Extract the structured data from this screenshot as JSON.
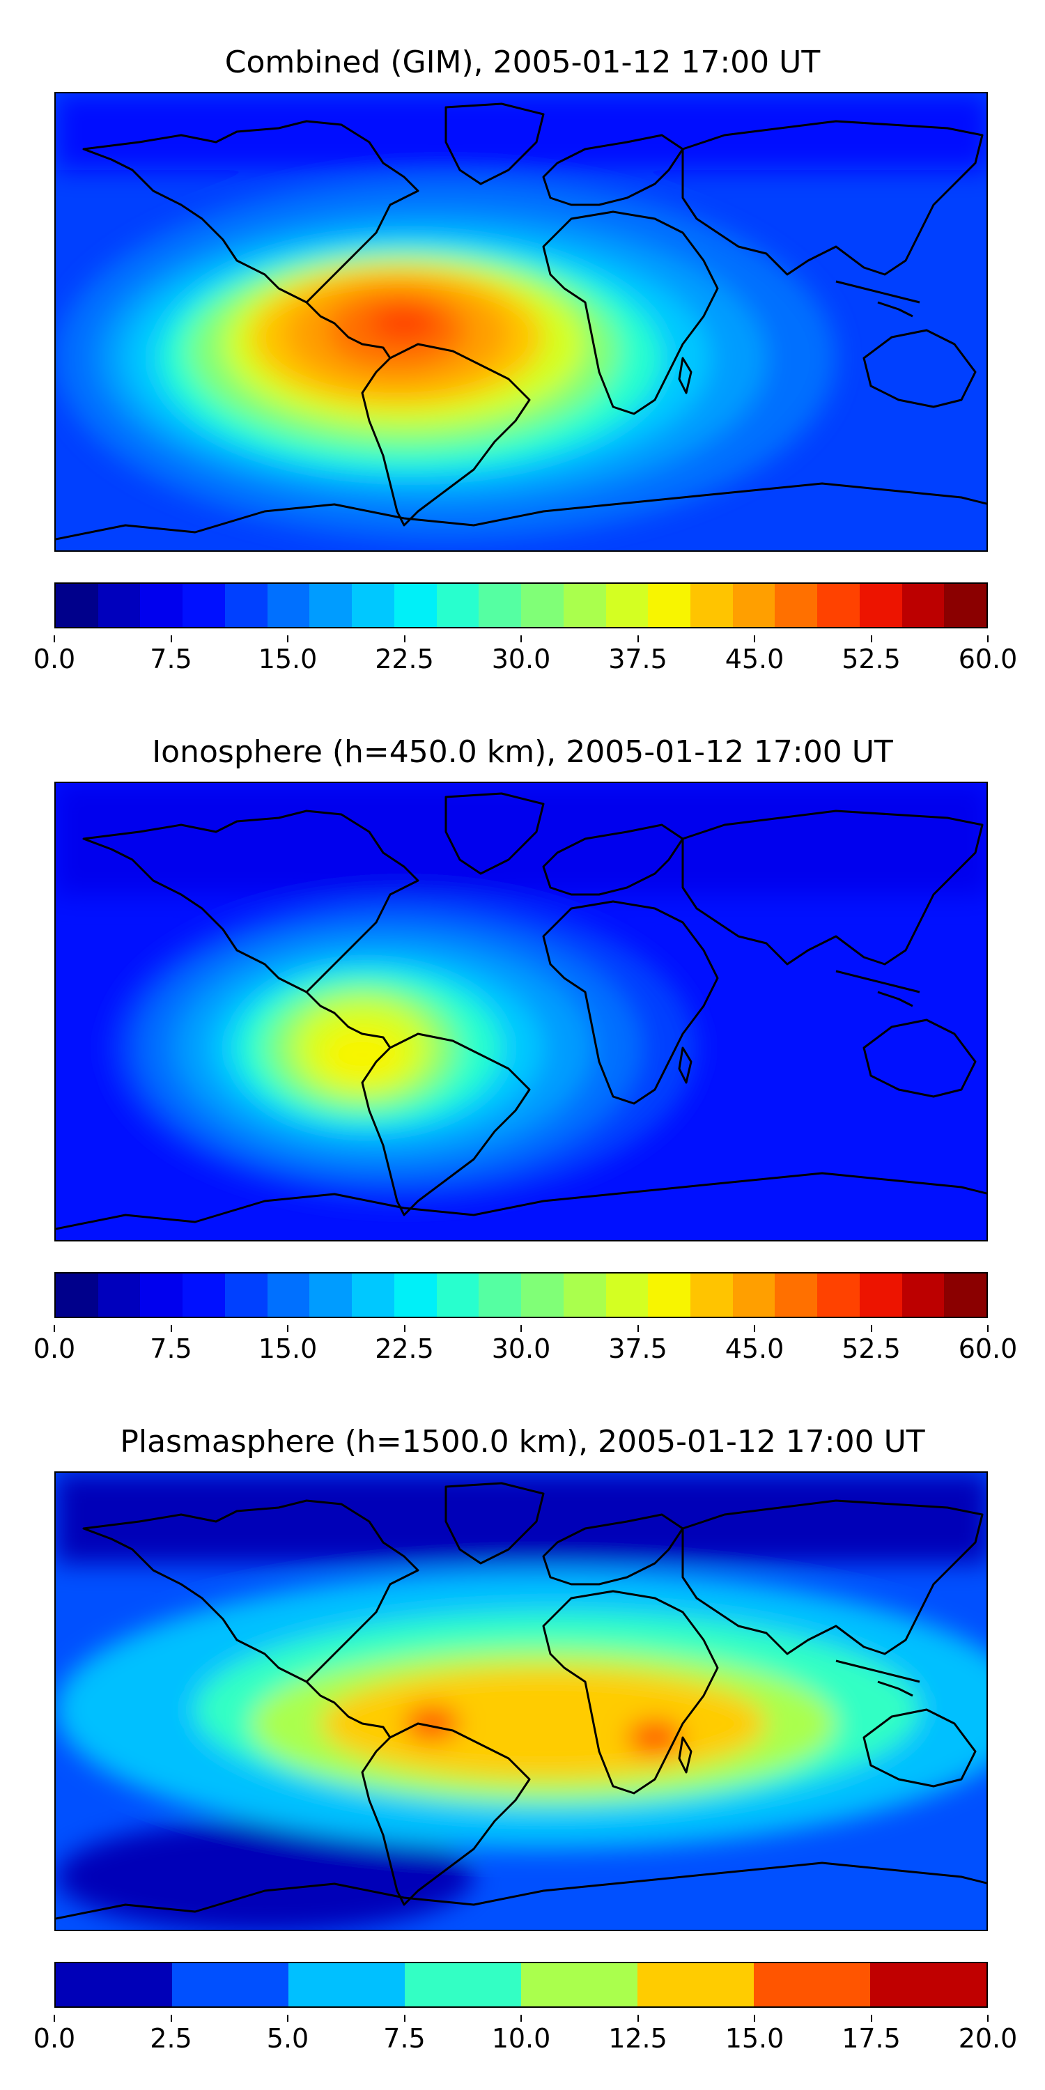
{
  "panels": [
    {
      "title": "Combined (GIM), 2005-01-12 17:00 UT",
      "colorbar": {
        "min": 0.0,
        "max": 60.0,
        "ticks": [
          "0.0",
          "7.5",
          "15.0",
          "22.5",
          "30.0",
          "37.5",
          "45.0",
          "52.5",
          "60.0"
        ],
        "colors": [
          "#00008b",
          "#0000bd",
          "#0000ee",
          "#0010ff",
          "#0040ff",
          "#0070ff",
          "#009cff",
          "#00c8ff",
          "#00f0f8",
          "#28ffce",
          "#55ffa2",
          "#80ff77",
          "#aaff4d",
          "#d4ff22",
          "#f8f500",
          "#ffc400",
          "#ff9f00",
          "#ff7000",
          "#ff4200",
          "#ed1400",
          "#bc0000",
          "#8b0000"
        ]
      }
    },
    {
      "title": "Ionosphere  (h=450.0 km), 2005-01-12 17:00 UT",
      "colorbar": {
        "min": 0.0,
        "max": 60.0,
        "ticks": [
          "0.0",
          "7.5",
          "15.0",
          "22.5",
          "30.0",
          "37.5",
          "45.0",
          "52.5",
          "60.0"
        ],
        "colors": [
          "#00008b",
          "#0000bd",
          "#0000ee",
          "#0010ff",
          "#0040ff",
          "#0070ff",
          "#009cff",
          "#00c8ff",
          "#00f0f8",
          "#28ffce",
          "#55ffa2",
          "#80ff77",
          "#aaff4d",
          "#d4ff22",
          "#f8f500",
          "#ffc400",
          "#ff9f00",
          "#ff7000",
          "#ff4200",
          "#ed1400",
          "#bc0000",
          "#8b0000"
        ]
      }
    },
    {
      "title": "Plasmasphere (h=1500.0 km), 2005-01-12 17:00 UT",
      "colorbar": {
        "min": 0.0,
        "max": 20.0,
        "ticks": [
          "0.0",
          "2.5",
          "5.0",
          "7.5",
          "10.0",
          "12.5",
          "15.0",
          "17.5",
          "20.0"
        ],
        "colors": [
          "#0000b8",
          "#0050ff",
          "#00c0ff",
          "#33ffc4",
          "#aaff4d",
          "#ffcc00",
          "#ff5500",
          "#c00000"
        ]
      }
    }
  ]
}
